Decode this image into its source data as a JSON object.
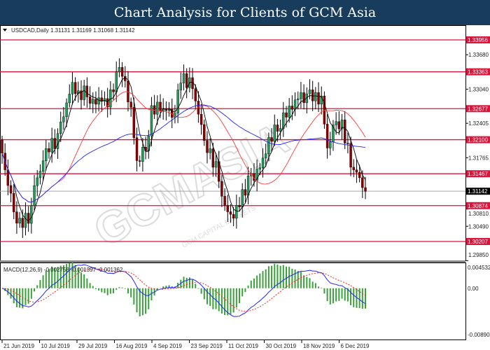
{
  "header": {
    "title": "Chart Analysis for Clients of GCM Asia"
  },
  "watermark": {
    "logo": "GCMASIA",
    "sub": "GCM CAPITAL MARKETS"
  },
  "colors": {
    "level_line": "#dc143c",
    "bull": "#1f9e5a",
    "bear": "#8b0000",
    "ma_fast": "#000000",
    "ma_mid": "#ff3b3b",
    "ma_slow": "#2222ff",
    "macd_hist": "#3aa03a",
    "macd_line": "#2222ff",
    "signal_line": "#ff2020"
  },
  "chart_data": {
    "type": "candlestick",
    "symbol_info": "USDCAD,Daily  1.31131 1.31169 1.31068 1.31142",
    "closes": [
      1.32095,
      1.31574,
      1.30793,
      1.30532,
      1.30663,
      1.31183,
      1.31704,
      1.31964,
      1.32095,
      1.32615,
      1.33136,
      1.32941,
      1.33006,
      1.32745,
      1.32876,
      1.32745,
      1.33266,
      1.33396,
      1.32615,
      1.31704,
      1.31964,
      1.32615,
      1.32745,
      1.32615,
      1.3255,
      1.33266,
      1.33136,
      1.32876,
      1.32095,
      1.31834,
      1.31444,
      1.30793,
      1.30663,
      1.30923,
      1.31314,
      1.31444,
      1.31704,
      1.32095,
      1.32355,
      1.32485,
      1.32745,
      1.32876,
      1.32876,
      1.32941,
      1.32811,
      1.31964,
      1.32485,
      1.32355,
      1.31704,
      1.31444,
      1.31142
    ],
    "levels": [
      "1.33956",
      "1.33363",
      "1.32677",
      "1.32100",
      "1.31467",
      "1.30874",
      "1.30207"
    ],
    "current_price": "1.31142",
    "y_ticks": [
      "1.33680",
      "1.33040",
      "1.32405",
      "1.31765",
      "1.30810",
      "1.30490",
      "1.29850"
    ],
    "ylim": [
      1.2985,
      1.3425
    ],
    "x_ticks": [
      "21 Jun 2019",
      "10 Jul 2019",
      "29 Jul 2019",
      "16 Aug 2019",
      "4 Sep 2019",
      "23 Sep 2019",
      "11 Oct 2019",
      "30 Oct 2019",
      "18 Nov 2019",
      "6 Dec 2019"
    ],
    "macd": {
      "label": "MACD(12,26,9) -0.002758 -0.001397 -0.001362",
      "y_ticks": [
        "0.004532",
        "0.00",
        "-0.008901"
      ],
      "ylim": [
        -0.008901,
        0.004532
      ]
    }
  }
}
